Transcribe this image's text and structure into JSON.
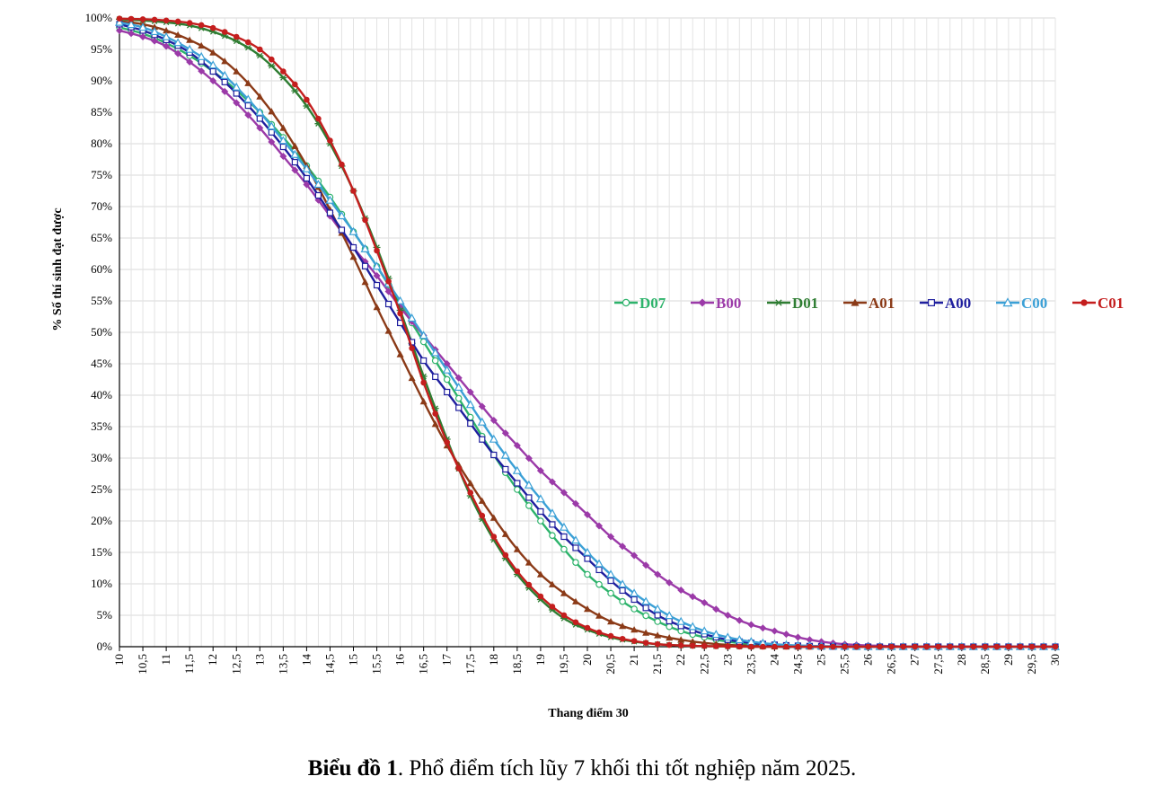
{
  "chart_data": {
    "type": "line",
    "title": "",
    "xlabel": "Thang điểm 30",
    "ylabel": "% Số thí sinh đạt được",
    "x_tick_labels": [
      "10",
      "10,5",
      "11",
      "11,5",
      "12",
      "12,5",
      "13",
      "13,5",
      "14",
      "14,5",
      "15",
      "15,5",
      "16",
      "16,5",
      "17",
      "17,5",
      "18",
      "18,5",
      "19",
      "19,5",
      "20",
      "20,5",
      "21",
      "21,5",
      "22",
      "22,5",
      "23",
      "23,5",
      "24",
      "24,5",
      "25",
      "25,5",
      "26",
      "26,5",
      "27",
      "27,5",
      "28",
      "28,5",
      "29",
      "29,5",
      "30"
    ],
    "y_tick_labels": [
      "0%",
      "5%",
      "10%",
      "15%",
      "20%",
      "25%",
      "30%",
      "35%",
      "40%",
      "45%",
      "50%",
      "55%",
      "60%",
      "65%",
      "70%",
      "75%",
      "80%",
      "85%",
      "90%",
      "95%",
      "100%"
    ],
    "xlim": [
      10,
      30
    ],
    "ylim": [
      0,
      100
    ],
    "grid": true,
    "legend_position": "right-middle",
    "x": [
      10,
      10.5,
      11,
      11.5,
      12,
      12.5,
      13,
      13.5,
      14,
      14.5,
      15,
      15.5,
      16,
      16.5,
      17,
      17.5,
      18,
      18.5,
      19,
      19.5,
      20,
      20.5,
      21,
      21.5,
      22,
      22.5,
      23,
      23.5,
      24,
      24.5,
      25,
      25.5,
      26,
      26.5,
      27,
      27.5,
      28,
      28.5,
      29,
      29.5,
      30
    ],
    "series": [
      {
        "name": "D07",
        "color": "#2db36b",
        "marker": "circle-open",
        "values": [
          98.5,
          97.5,
          96,
          94,
          91.5,
          88.5,
          85,
          81,
          76.5,
          71.5,
          66,
          60.5,
          54.5,
          48.5,
          42.5,
          36.5,
          30.5,
          25,
          20,
          15.5,
          11.5,
          8.5,
          6,
          4,
          2.5,
          1.5,
          0.8,
          0.4,
          0.2,
          0.1,
          0.05,
          0.02,
          0,
          0,
          0,
          0,
          0,
          0,
          0,
          0,
          0
        ]
      },
      {
        "name": "B00",
        "color": "#9b3aa8",
        "marker": "diamond",
        "values": [
          98,
          97,
          95.5,
          93,
          90,
          86.5,
          82.5,
          78,
          73.5,
          68.5,
          63.5,
          59,
          54,
          49.5,
          45,
          40.5,
          36,
          32,
          28,
          24.5,
          21,
          17.5,
          14.5,
          11.5,
          9,
          7,
          5,
          3.5,
          2.5,
          1.5,
          0.8,
          0.4,
          0.2,
          0.1,
          0,
          0,
          0,
          0,
          0,
          0,
          0
        ]
      },
      {
        "name": "D01",
        "color": "#2e7d32",
        "marker": "star",
        "values": [
          99.8,
          99.6,
          99.3,
          98.8,
          97.8,
          96.3,
          94,
          90.5,
          86,
          80,
          72.5,
          63.5,
          53.5,
          43,
          33,
          24,
          17,
          11.5,
          7.5,
          4.5,
          2.7,
          1.5,
          0.8,
          0.4,
          0.2,
          0.1,
          0.05,
          0,
          0,
          0,
          0,
          0,
          0,
          0,
          0,
          0,
          0,
          0,
          0,
          0,
          0
        ]
      },
      {
        "name": "A01",
        "color": "#8b3a17",
        "marker": "triangle",
        "values": [
          99.5,
          99,
          98,
          96.5,
          94.5,
          91.5,
          87.5,
          82.5,
          76.5,
          69.5,
          62,
          54,
          46.5,
          39,
          32,
          26,
          20.5,
          15.5,
          11.5,
          8.5,
          6,
          4,
          2.7,
          1.8,
          1.1,
          0.6,
          0.3,
          0.15,
          0.05,
          0,
          0,
          0,
          0,
          0,
          0,
          0,
          0,
          0,
          0,
          0,
          0
        ]
      },
      {
        "name": "A00",
        "color": "#1f1f9e",
        "marker": "square-open",
        "values": [
          99,
          98,
          96.5,
          94.5,
          91.5,
          88,
          84,
          79.5,
          74.5,
          69,
          63.5,
          57.5,
          51.5,
          45.5,
          40.5,
          35.5,
          30.5,
          26,
          21.5,
          17.5,
          14,
          10.5,
          7.5,
          5,
          3.3,
          2,
          1.1,
          0.6,
          0.3,
          0.15,
          0.05,
          0,
          0,
          0,
          0,
          0,
          0,
          0,
          0,
          0,
          0
        ]
      },
      {
        "name": "C00",
        "color": "#3ba0d6",
        "marker": "triangle-open",
        "values": [
          99.3,
          98.5,
          97,
          95,
          92.5,
          89,
          85,
          80.5,
          76,
          71,
          66,
          60.5,
          55,
          49.5,
          44,
          38.5,
          33,
          28,
          23.5,
          19,
          15,
          11.5,
          8.5,
          6,
          4,
          2.5,
          1.5,
          0.8,
          0.4,
          0.2,
          0.1,
          0.05,
          0,
          0,
          0,
          0,
          0,
          0,
          0,
          0,
          0
        ]
      },
      {
        "name": "C01",
        "color": "#c41e1e",
        "marker": "circle",
        "values": [
          99.9,
          99.8,
          99.6,
          99.2,
          98.4,
          97,
          95,
          91.5,
          87,
          80.5,
          72.5,
          63,
          53,
          42,
          32.5,
          24.5,
          17.5,
          12,
          8,
          5,
          3,
          1.7,
          0.9,
          0.4,
          0.2,
          0.1,
          0.05,
          0,
          0,
          0,
          0,
          0,
          0,
          0,
          0,
          0,
          0,
          0,
          0,
          0,
          0
        ]
      }
    ]
  },
  "caption": {
    "bold_part": "Biểu đồ 1",
    "rest": ". Phổ điểm tích lũy 7 khối thi tốt nghiệp năm 2025."
  }
}
